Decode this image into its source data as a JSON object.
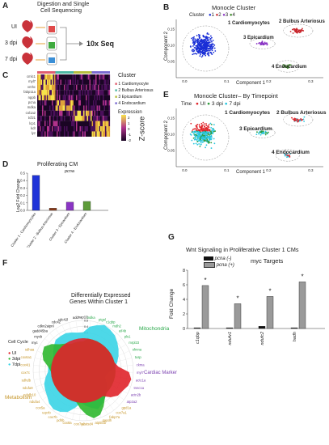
{
  "panelA": {
    "label": "A",
    "title_line1": "Digestion and Single",
    "title_line2": "Cell Sequencing",
    "samples": [
      "UI",
      "3 dpi",
      "7 dpi"
    ],
    "seq_label": "10x Seq"
  },
  "panelB": {
    "label": "B",
    "title": "Monocle Cluster",
    "legend_title": "Cluster",
    "legend_items": [
      "1",
      "2",
      "3",
      "4"
    ],
    "cluster_names": [
      "1 Cardiomyocytes",
      "2 Bulbus Arteriosus",
      "3 Epicardium",
      "4 Endocardium"
    ],
    "xlabel": "Component 1",
    "ylabel": "Component 2",
    "xticks": [
      "0.0",
      "0.1",
      "0.2",
      "0.3"
    ],
    "yticks": [
      "0.05",
      "0.10",
      "0.15"
    ],
    "colors": [
      "#1a2fd6",
      "#c8252b",
      "#8a35c4",
      "#3f8a2a"
    ]
  },
  "panelC": {
    "label": "C",
    "genes": [
      "cmlc1",
      "myl7",
      "vmhc",
      "fabp11a",
      "nppb",
      "pcna",
      "mdka",
      "col1a2",
      "tcf21",
      "lcp1",
      "kdr",
      "lyz"
    ],
    "legend_title": "Cluster",
    "legend_items": [
      "1  Cardiomyocyte",
      "2  Bulbus Arteriosus",
      "3  Epicardium",
      "4  Endocardium"
    ],
    "expression_label": "Expression",
    "zscore_label": "Z-score",
    "scale_ticks": [
      "2",
      "1",
      "0",
      "-1",
      "-2"
    ],
    "band_colors": [
      "#e05d6f",
      "#4db7a3",
      "#b5bd3e",
      "#7a6ad0"
    ]
  },
  "panelD": {
    "label": "D",
    "title": "Proliferating CM",
    "gene_label": "pcna",
    "ylabel": "Log2 Fold Change",
    "chart_data": {
      "type": "bar",
      "categories": [
        "Cluster 1 - Cardiomyocytes",
        "Cluster 2 - Bulbus Arteriosus",
        "Cluster 3 - Epicardium",
        "Cluster 4 - Endocardium"
      ],
      "values": [
        0.47,
        0.03,
        0.11,
        0.12
      ],
      "ylim": [
        0,
        0.5
      ],
      "yticks": [
        "0.0",
        "0.1",
        "0.2",
        "0.3",
        "0.4",
        "0.5"
      ],
      "colors": [
        "#1f33d8",
        "#8b3b1a",
        "#8a35c4",
        "#5d9b3a"
      ]
    }
  },
  "panelE": {
    "label": "E",
    "title": "Monocle Cluster– By Timepoint",
    "legend_title": "Time",
    "legend_items": [
      "UI",
      "3 dpi",
      "7 dpi"
    ],
    "colors": [
      "#e0242a",
      "#2c9a3a",
      "#28c7e0"
    ],
    "cluster_names": [
      "1 Cardiomyocytes",
      "2 Bulbus Arteriosus",
      "3 Epicardium",
      "4 Endocardium"
    ],
    "xlabel": "Component 1",
    "ylabel": "Component 2",
    "xticks": [
      "0.0",
      "0.1",
      "0.2",
      "0.3"
    ],
    "yticks": [
      "0.05",
      "0.10",
      "0.15"
    ]
  },
  "panelF": {
    "label": "F",
    "title_line1": "Differentially Expressed",
    "title_line2": "Genes Within Cluster 1",
    "legend_items": [
      "UI",
      "3dpi",
      "7dpi"
    ],
    "legend_colors": [
      "#e0242a",
      "#2fb82f",
      "#3ad4e6"
    ],
    "categories": [
      "Cell Cycle",
      "Mitochondria",
      "Cardiac Marker",
      "Metabolism"
    ],
    "category_colors": [
      "#222222",
      "#2aa84a",
      "#7a3fb0",
      "#c6962a"
    ],
    "rings": [
      "0.6",
      "0.4",
      "0.2",
      "0.0",
      "-0.2",
      "-0.4",
      "-0.6",
      "-0.8"
    ],
    "genes": [
      "nap1l1",
      "mdka",
      "ptgsl",
      "c1qbp",
      "mdh2",
      "eif4b",
      "pls1",
      "mrpl23",
      "sfmna",
      "tusp",
      "ckma",
      "myl7",
      "actc1a",
      "tnnc1a",
      "actn2b",
      "atp2a2",
      "gpd1a",
      "cox7a1",
      "fabp7a",
      "gapdh",
      "atp5l1b",
      "yeatsd4",
      "cox7a2",
      "cox8a",
      "pdhb",
      "cox7b",
      "uqcrb",
      "cox5a",
      "ndufa4",
      "ndufb10",
      "ndufa9",
      "sdhdb",
      "cox7c",
      "cox4i1",
      "cox6a1",
      "sdhaa",
      "myc",
      "mycb",
      "gadd45ba",
      "cdkn2aipnl",
      "cdc42",
      "cdc42l",
      "add"
    ],
    "gene_colors": [
      "#222222",
      "#2aa84a",
      "#2aa84a",
      "#2aa84a",
      "#2aa84a",
      "#2aa84a",
      "#2aa84a",
      "#2aa84a",
      "#2aa84a",
      "#2aa84a",
      "#7a3fb0",
      "#7a3fb0",
      "#7a3fb0",
      "#7a3fb0",
      "#7a3fb0",
      "#7a3fb0",
      "#c6962a",
      "#c6962a",
      "#c6962a",
      "#c6962a",
      "#c6962a",
      "#c6962a",
      "#c6962a",
      "#c6962a",
      "#c6962a",
      "#c6962a",
      "#c6962a",
      "#c6962a",
      "#c6962a",
      "#c6962a",
      "#c6962a",
      "#c6962a",
      "#c6962a",
      "#c6962a",
      "#c6962a",
      "#c6962a",
      "#222222",
      "#222222",
      "#222222",
      "#222222",
      "#222222",
      "#222222",
      "#222222"
    ],
    "chart_data": {
      "type": "radar",
      "series": [
        {
          "name": "UI",
          "color": "#e0242a",
          "values": [
            0.0,
            0.0,
            0.0,
            0.0,
            0.0,
            0.0,
            0.0,
            0.0,
            0.0,
            0.0,
            0.1,
            0.45,
            0.55,
            0.5,
            0.4,
            0.35,
            0.2,
            0.0,
            0.0,
            0.0,
            0.0,
            0.0,
            0.0,
            0.0,
            0.0,
            0.0,
            0.0,
            0.0,
            0.0,
            0.0,
            0.0,
            0.0,
            0.0,
            0.0,
            0.0,
            0.0,
            0.0,
            0.0,
            0.0,
            0.0,
            0.0,
            0.0,
            0.0
          ]
        },
        {
          "name": "3dpi",
          "color": "#2fb82f",
          "values": [
            -0.1,
            0.0,
            0.0,
            0.0,
            0.0,
            0.0,
            0.0,
            0.0,
            0.0,
            0.0,
            0.0,
            0.0,
            0.0,
            0.0,
            0.0,
            0.0,
            0.0,
            0.1,
            0.3,
            0.5,
            0.55,
            0.4,
            0.2,
            0.0,
            0.0,
            0.0,
            0.0,
            0.0,
            0.0,
            0.0,
            0.0,
            0.0,
            0.0,
            0.1,
            0.3,
            0.4,
            0.45,
            0.3,
            0.1,
            0.0,
            -0.1,
            -0.1,
            -0.1
          ]
        },
        {
          "name": "7dpi",
          "color": "#3ad4e6",
          "values": [
            0.2,
            0.4,
            0.5,
            0.6,
            0.55,
            0.5,
            0.4,
            0.3,
            0.2,
            0.1,
            0.0,
            -0.2,
            -0.3,
            -0.3,
            -0.2,
            -0.1,
            0.0,
            0.1,
            0.2,
            0.3,
            0.2,
            0.1,
            0.0,
            0.2,
            0.4,
            0.5,
            0.55,
            0.5,
            0.4,
            0.35,
            0.3,
            0.2,
            0.1,
            0.1,
            0.0,
            0.0,
            0.1,
            0.2,
            0.3,
            0.3,
            0.3,
            0.25,
            0.2
          ]
        }
      ],
      "rmin": -0.8,
      "rmax": 0.6
    }
  },
  "panelG": {
    "label": "G",
    "title": "Wnt Signaling in Proliferative Cluster 1 CMs",
    "legend_items": [
      "pcna (-)",
      "pcna (+)"
    ],
    "legend_colors": [
      "#111111",
      "#9a9a9a"
    ],
    "target_label": "myc Targets",
    "ylabel": "Fold Change",
    "significance": "*",
    "chart_data": {
      "type": "bar",
      "categories": [
        "c1qbp",
        "ndufv1",
        "ndufc2",
        "hadh"
      ],
      "series": [
        {
          "name": "pcna (-)",
          "values": [
            0.1,
            0.1,
            0.3,
            0.1
          ]
        },
        {
          "name": "pcna (+)",
          "values": [
            5.9,
            3.4,
            4.4,
            6.4
          ]
        }
      ],
      "ylim": [
        0,
        8
      ],
      "yticks": [
        "0",
        "2",
        "4",
        "6",
        "8"
      ]
    }
  }
}
